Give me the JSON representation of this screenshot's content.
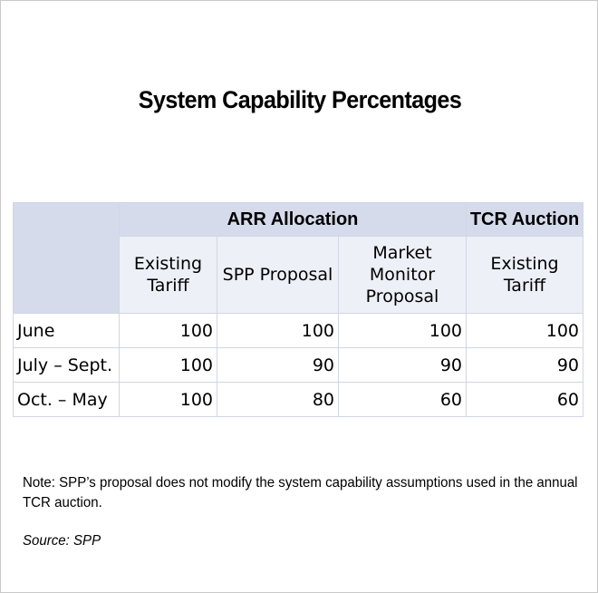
{
  "title": "System Capability Percentages",
  "table": {
    "group_headers": {
      "arr": "ARR Allocation",
      "tcr": "TCR Auction"
    },
    "sub_headers": {
      "existing_tariff_arr_line1": "Existing",
      "existing_tariff_arr_line2": "Tariff",
      "spp_proposal": "SPP Proposal",
      "market_monitor_line1": "Market",
      "market_monitor_line2": "Monitor",
      "market_monitor_line3": "Proposal",
      "existing_tariff_tcr_line1": "Existing",
      "existing_tariff_tcr_line2": "Tariff"
    },
    "rows": [
      {
        "label": "June",
        "values": [
          "100",
          "100",
          "100",
          "100"
        ]
      },
      {
        "label": "July – Sept.",
        "values": [
          "100",
          "90",
          "90",
          "90"
        ]
      },
      {
        "label": "Oct. – May",
        "values": [
          "100",
          "80",
          "60",
          "60"
        ]
      }
    ]
  },
  "note": "Note: SPP’s proposal does not modify the system capability assumptions used in the annual TCR auction.",
  "source": "Source: SPP",
  "colors": {
    "header_dark": "#d6dbec",
    "header_light": "#edf0f7",
    "grid": "#d2d6e4"
  }
}
